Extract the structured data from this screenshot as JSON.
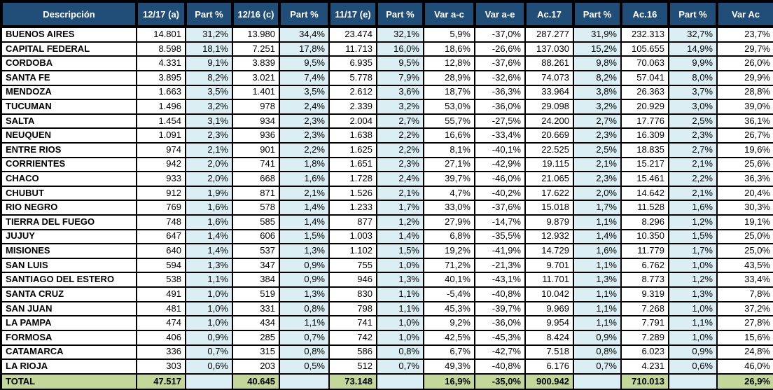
{
  "chart_data": {
    "type": "table",
    "title": "",
    "legend_position": "none",
    "grid": true,
    "columns": [
      "Descripción",
      "12/17 (a)",
      "Part %",
      "12/16 (c)",
      "Part %",
      "11/17 (e)",
      "Part %",
      "Var a-c",
      "Var a-e",
      "Ac.17",
      "Part %",
      "Ac.16",
      "Part %",
      "Var Ac"
    ],
    "part_percent_column_indices": [
      2,
      4,
      6,
      10,
      12
    ],
    "rows": [
      [
        "BUENOS AIRES",
        "14.801",
        "31,2%",
        "13.980",
        "34,4%",
        "23.474",
        "32,1%",
        "5,9%",
        "-37,0%",
        "287.277",
        "31,9%",
        "232.313",
        "32,7%",
        "23,7%"
      ],
      [
        "CAPITAL FEDERAL",
        "8.598",
        "18,1%",
        "7.251",
        "17,8%",
        "11.713",
        "16,0%",
        "18,6%",
        "-26,6%",
        "137.030",
        "15,2%",
        "105.655",
        "14,9%",
        "29,7%"
      ],
      [
        "CORDOBA",
        "4.331",
        "9,1%",
        "3.839",
        "9,5%",
        "6.935",
        "9,5%",
        "12,8%",
        "-37,6%",
        "88.261",
        "9,8%",
        "70.063",
        "9,9%",
        "26,0%"
      ],
      [
        "SANTA FE",
        "3.895",
        "8,2%",
        "3.021",
        "7,4%",
        "5.778",
        "7,9%",
        "28,9%",
        "-32,6%",
        "74.073",
        "8,2%",
        "57.041",
        "8,0%",
        "29,9%"
      ],
      [
        "MENDOZA",
        "1.663",
        "3,5%",
        "1.401",
        "3,5%",
        "2.612",
        "3,6%",
        "18,7%",
        "-36,3%",
        "33.964",
        "3,8%",
        "26.363",
        "3,7%",
        "28,8%"
      ],
      [
        "TUCUMAN",
        "1.496",
        "3,2%",
        "978",
        "2,4%",
        "2.339",
        "3,2%",
        "53,0%",
        "-36,0%",
        "29.098",
        "3,2%",
        "20.929",
        "3,0%",
        "39,0%"
      ],
      [
        "SALTA",
        "1.454",
        "3,1%",
        "934",
        "2,3%",
        "2.004",
        "2,7%",
        "55,7%",
        "-27,5%",
        "24.200",
        "2,7%",
        "17.776",
        "2,5%",
        "36,1%"
      ],
      [
        "NEUQUEN",
        "1.091",
        "2,3%",
        "936",
        "2,3%",
        "1.638",
        "2,2%",
        "16,6%",
        "-33,4%",
        "20.669",
        "2,3%",
        "16.309",
        "2,3%",
        "26,7%"
      ],
      [
        "ENTRE RIOS",
        "974",
        "2,1%",
        "901",
        "2,2%",
        "1.625",
        "2,2%",
        "8,1%",
        "-40,1%",
        "22.525",
        "2,5%",
        "18.835",
        "2,7%",
        "19,6%"
      ],
      [
        "CORRIENTES",
        "942",
        "2,0%",
        "741",
        "1,8%",
        "1.651",
        "2,3%",
        "27,1%",
        "-42,9%",
        "19.115",
        "2,1%",
        "15.217",
        "2,1%",
        "25,6%"
      ],
      [
        "CHACO",
        "933",
        "2,0%",
        "668",
        "1,6%",
        "1.728",
        "2,4%",
        "39,7%",
        "-46,0%",
        "21.065",
        "2,3%",
        "15.461",
        "2,2%",
        "36,3%"
      ],
      [
        "CHUBUT",
        "912",
        "1,9%",
        "871",
        "2,1%",
        "1.526",
        "2,1%",
        "4,7%",
        "-40,2%",
        "17.622",
        "2,0%",
        "14.642",
        "2,1%",
        "20,4%"
      ],
      [
        "RIO NEGRO",
        "769",
        "1,6%",
        "578",
        "1,4%",
        "1.233",
        "1,7%",
        "33,0%",
        "-37,6%",
        "15.018",
        "1,7%",
        "11.528",
        "1,6%",
        "30,3%"
      ],
      [
        "TIERRA DEL FUEGO",
        "748",
        "1,6%",
        "585",
        "1,4%",
        "877",
        "1,2%",
        "27,9%",
        "-14,7%",
        "9.879",
        "1,1%",
        "8.296",
        "1,2%",
        "19,1%"
      ],
      [
        "JUJUY",
        "647",
        "1,4%",
        "606",
        "1,5%",
        "1.003",
        "1,4%",
        "6,8%",
        "-35,5%",
        "12.932",
        "1,4%",
        "10.350",
        "1,5%",
        "25,0%"
      ],
      [
        "MISIONES",
        "640",
        "1,4%",
        "537",
        "1,3%",
        "1.102",
        "1,5%",
        "19,2%",
        "-41,9%",
        "14.729",
        "1,6%",
        "11.779",
        "1,7%",
        "25,0%"
      ],
      [
        "SAN LUIS",
        "594",
        "1,3%",
        "347",
        "0,9%",
        "755",
        "1,0%",
        "71,2%",
        "-21,3%",
        "9.701",
        "1,1%",
        "6.762",
        "1,0%",
        "43,5%"
      ],
      [
        "SANTIAGO DEL ESTERO",
        "538",
        "1,1%",
        "384",
        "0,9%",
        "946",
        "1,3%",
        "40,1%",
        "-43,1%",
        "11.701",
        "1,3%",
        "8.773",
        "1,2%",
        "33,4%"
      ],
      [
        "SANTA CRUZ",
        "491",
        "1,0%",
        "519",
        "1,3%",
        "830",
        "1,1%",
        "-5,4%",
        "-40,8%",
        "10.042",
        "1,1%",
        "9.319",
        "1,3%",
        "7,8%"
      ],
      [
        "SAN JUAN",
        "481",
        "1,0%",
        "331",
        "0,8%",
        "798",
        "1,1%",
        "45,3%",
        "-39,7%",
        "9.969",
        "1,1%",
        "7.268",
        "1,0%",
        "37,2%"
      ],
      [
        "LA PAMPA",
        "474",
        "1,0%",
        "434",
        "1,1%",
        "741",
        "1,0%",
        "9,2%",
        "-36,0%",
        "9.954",
        "1,1%",
        "7.791",
        "1,1%",
        "27,8%"
      ],
      [
        "FORMOSA",
        "406",
        "0,9%",
        "285",
        "0,7%",
        "742",
        "1,0%",
        "42,5%",
        "-45,3%",
        "8.424",
        "0,9%",
        "7.289",
        "1,0%",
        "15,6%"
      ],
      [
        "CATAMARCA",
        "336",
        "0,7%",
        "315",
        "0,8%",
        "586",
        "0,8%",
        "6,7%",
        "-42,7%",
        "7.518",
        "0,8%",
        "6.023",
        "0,9%",
        "24,8%"
      ],
      [
        "LA RIOJA",
        "303",
        "0,6%",
        "203",
        "0,5%",
        "512",
        "0,7%",
        "49,3%",
        "-40,8%",
        "6.176",
        "0,7%",
        "4.231",
        "0,6%",
        "46,0%"
      ]
    ],
    "total_row": [
      "TOTAL",
      "47.517",
      "",
      "40.645",
      "",
      "73.148",
      "",
      "16,9%",
      "-35,0%",
      "900.942",
      "",
      "710.013",
      "",
      "26,9%"
    ],
    "colors": {
      "header_bg": "#204E78",
      "header_text": "#FFFFFF",
      "part_column_bg": "#DAEEF3",
      "total_row_bg": "#C4D79B",
      "cell_bg": "#FFFFFF",
      "border": "#000000"
    }
  }
}
